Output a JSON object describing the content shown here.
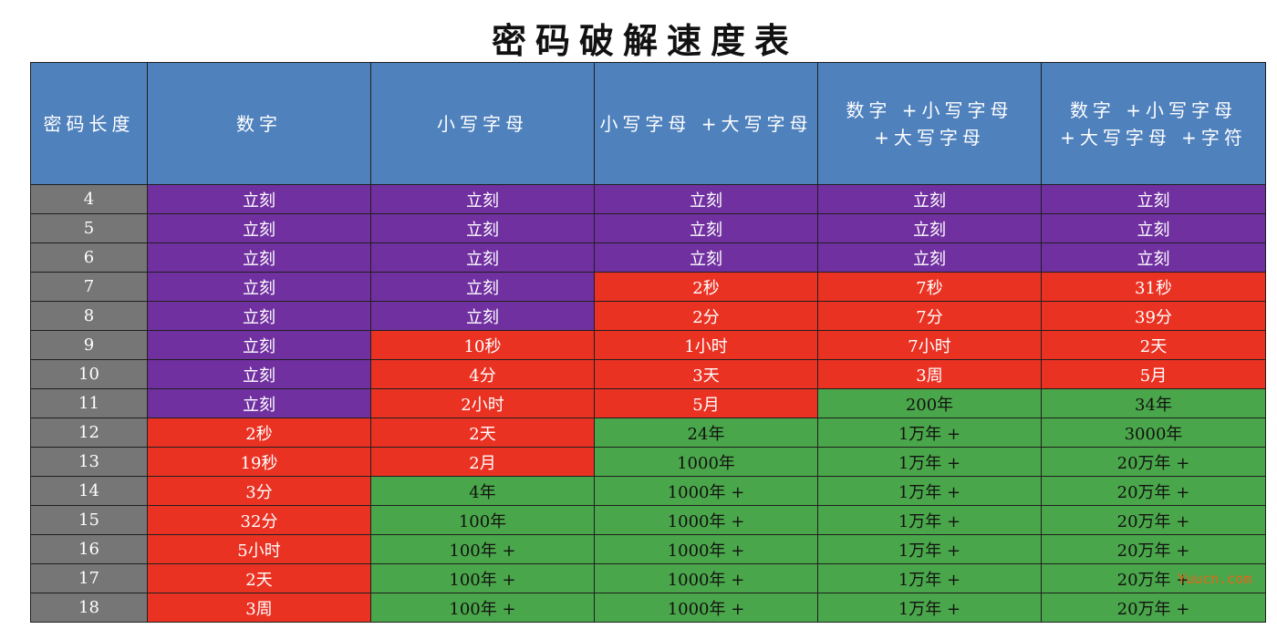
{
  "title": "密码破解速度表",
  "chart_data": {
    "type": "table",
    "title": "密码破解速度表",
    "columns": [
      "密码长度",
      "数字",
      "小写字母",
      "小写字母 +大写字母",
      "数字 +小写字母 +大写字母",
      "数字 +小写字母 +大写字母 +字符"
    ],
    "rows": [
      [
        "4",
        "立刻",
        "立刻",
        "立刻",
        "立刻",
        "立刻"
      ],
      [
        "5",
        "立刻",
        "立刻",
        "立刻",
        "立刻",
        "立刻"
      ],
      [
        "6",
        "立刻",
        "立刻",
        "立刻",
        "立刻",
        "立刻"
      ],
      [
        "7",
        "立刻",
        "立刻",
        "2秒",
        "7秒",
        "31秒"
      ],
      [
        "8",
        "立刻",
        "立刻",
        "2分",
        "7分",
        "39分"
      ],
      [
        "9",
        "立刻",
        "10秒",
        "1小时",
        "7小时",
        "2天"
      ],
      [
        "10",
        "立刻",
        "4分",
        "3天",
        "3周",
        "5月"
      ],
      [
        "11",
        "立刻",
        "2小时",
        "5月",
        "200年",
        "34年"
      ],
      [
        "12",
        "2秒",
        "2天",
        "24年",
        "1万年 +",
        "3000年"
      ],
      [
        "13",
        "19秒",
        "2月",
        "1000年",
        "1万年 +",
        "20万年 +"
      ],
      [
        "14",
        "3分",
        "4年",
        "1000年 +",
        "1万年 +",
        "20万年 +"
      ],
      [
        "15",
        "32分",
        "100年",
        "1000年 +",
        "1万年 +",
        "20万年 +"
      ],
      [
        "16",
        "5小时",
        "100年 +",
        "1000年 +",
        "1万年 +",
        "20万年 +"
      ],
      [
        "17",
        "2天",
        "100年 +",
        "1000年 +",
        "1万年 +",
        "20万年 +"
      ],
      [
        "18",
        "3周",
        "100年 +",
        "1000年 +",
        "1万年 +",
        "20万年 +"
      ]
    ],
    "cell_colors": [
      [
        "purple",
        "purple",
        "purple",
        "purple",
        "purple"
      ],
      [
        "purple",
        "purple",
        "purple",
        "purple",
        "purple"
      ],
      [
        "purple",
        "purple",
        "purple",
        "purple",
        "purple"
      ],
      [
        "purple",
        "purple",
        "red",
        "red",
        "red"
      ],
      [
        "purple",
        "purple",
        "red",
        "red",
        "red"
      ],
      [
        "purple",
        "red",
        "red",
        "red",
        "red"
      ],
      [
        "purple",
        "red",
        "red",
        "red",
        "red"
      ],
      [
        "purple",
        "red",
        "red",
        "green",
        "green"
      ],
      [
        "red",
        "red",
        "green",
        "green",
        "green"
      ],
      [
        "red",
        "red",
        "green",
        "green",
        "green"
      ],
      [
        "red",
        "green",
        "green",
        "green",
        "green"
      ],
      [
        "red",
        "green",
        "green",
        "green",
        "green"
      ],
      [
        "red",
        "green",
        "green",
        "green",
        "green"
      ],
      [
        "red",
        "green",
        "green",
        "green",
        "green"
      ],
      [
        "red",
        "green",
        "green",
        "green",
        "green"
      ]
    ],
    "colors": {
      "header": "#4f81bd",
      "length_column": "#767676",
      "purple": "#7030a0",
      "red": "#ea3223",
      "green": "#4aa64a"
    }
  },
  "watermark": "Yuucn.com"
}
